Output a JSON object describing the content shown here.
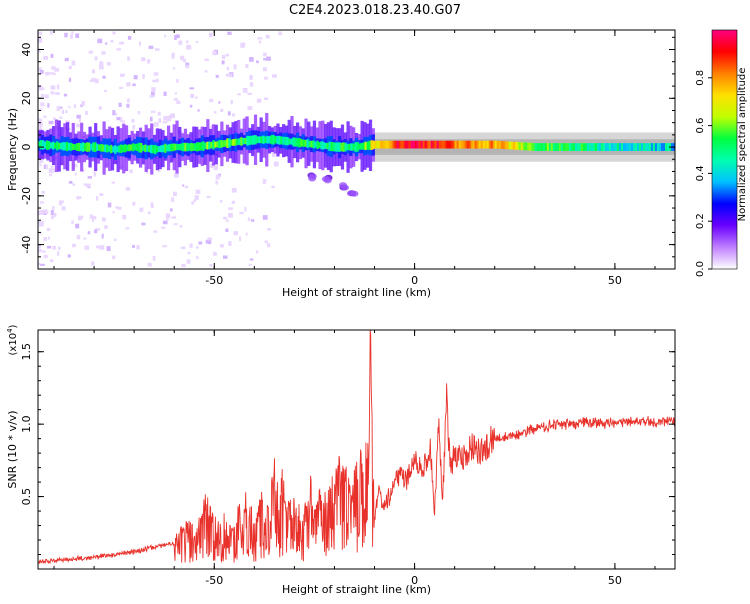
{
  "figure_title": "C2E4.2023.018.23.40.G07",
  "colors": {
    "line": "#e8312a",
    "axis": "#000000",
    "spec_low": "#a000ff",
    "spec_mid": "#00ff40",
    "spec_high": "#ff0000"
  },
  "chart_data": [
    {
      "type": "heatmap",
      "xlabel": "Height of straight line (km)",
      "ylabel": "Frequency (Hz)",
      "xlim": [
        -94,
        65
      ],
      "ylim": [
        -50,
        48
      ],
      "xticks": [
        -50,
        0,
        50
      ],
      "yticks": [
        -40,
        -20,
        0,
        20,
        40
      ],
      "colorbar": {
        "label": "Normalized spectral amplitude",
        "range": [
          0,
          1
        ],
        "ticks": [
          "0.0",
          "0.2",
          "0.4",
          "0.6",
          "0.8"
        ],
        "tick_values": [
          0,
          0.2,
          0.4,
          0.6,
          0.8
        ],
        "colormap": [
          "#ffffff",
          "#c080ff",
          "#6a00ff",
          "#0000ff",
          "#00c0ff",
          "#00ffb0",
          "#00ff40",
          "#c0ff00",
          "#ffe000",
          "#ff8000",
          "#ff0000",
          "#ff0080"
        ]
      },
      "ridge": {
        "x": [
          -94,
          -85,
          -80,
          -75,
          -70,
          -65,
          -60,
          -55,
          -50,
          -45,
          -40,
          -35,
          -30,
          -25,
          -20,
          -15,
          -10,
          -5,
          0,
          5,
          10,
          20,
          30,
          40,
          50,
          65
        ],
        "freq": [
          1,
          0,
          0,
          -1,
          0,
          -1,
          0,
          0,
          1,
          2,
          3,
          3,
          2,
          1,
          0,
          0,
          1,
          1,
          1,
          1,
          1,
          1,
          0,
          0,
          0,
          0
        ],
        "intensity": [
          0.45,
          0.5,
          0.5,
          0.5,
          0.5,
          0.5,
          0.5,
          0.55,
          0.55,
          0.55,
          0.5,
          0.5,
          0.5,
          0.5,
          0.5,
          0.5,
          0.7,
          0.9,
          0.95,
          0.9,
          0.8,
          0.8,
          0.55,
          0.5,
          0.45,
          0.4
        ]
      },
      "secondary_branch": {
        "x": [
          -26,
          -22,
          -18,
          -15
        ],
        "freq": [
          -12,
          -13,
          -16,
          -19
        ]
      }
    },
    {
      "type": "line",
      "xlabel": "Height of straight line (km)",
      "ylabel": "SNR (10 * v/v)",
      "y_multiplier": "(x10",
      "y_multiplier_exp": "4",
      "y_multiplier_close": ")",
      "xlim": [
        -94,
        65
      ],
      "ylim": [
        0,
        1.65
      ],
      "xticks": [
        -50,
        0,
        50
      ],
      "yticks": [
        "0.5",
        "1.0",
        "1.5"
      ],
      "ytick_values": [
        0.5,
        1.0,
        1.5
      ],
      "series": [
        {
          "x": [
            -94,
            -90,
            -85,
            -80,
            -75,
            -70,
            -65,
            -60,
            -57,
            -55,
            -52,
            -50,
            -48,
            -45,
            -43,
            -40,
            -38,
            -36,
            -35,
            -34,
            -33,
            -32,
            -30,
            -28,
            -26,
            -25,
            -24,
            -22,
            -20,
            -18,
            -16,
            -15,
            -14,
            -13,
            -12,
            -11.5,
            -11,
            -10.5,
            -10,
            -9,
            -8,
            -6,
            -4,
            -2,
            0,
            2,
            4,
            5,
            6,
            7,
            8,
            9,
            10,
            12,
            14,
            16,
            18,
            20,
            22,
            25,
            28,
            30,
            32,
            35,
            40,
            45,
            50,
            55,
            60,
            65
          ],
          "y": [
            0.05,
            0.06,
            0.07,
            0.08,
            0.1,
            0.12,
            0.15,
            0.18,
            0.3,
            0.25,
            0.45,
            0.3,
            0.35,
            0.25,
            0.5,
            0.3,
            0.45,
            0.35,
            0.85,
            0.4,
            0.6,
            0.35,
            0.45,
            0.3,
            0.55,
            0.35,
            0.5,
            0.45,
            0.55,
            0.7,
            0.5,
            0.65,
            0.6,
            0.75,
            1.05,
            0.6,
            1.65,
            0.8,
            0.35,
            0.55,
            0.45,
            0.5,
            0.65,
            0.6,
            0.75,
            0.7,
            0.8,
            0.4,
            1.0,
            0.5,
            1.15,
            0.7,
            0.8,
            0.75,
            0.85,
            0.8,
            0.85,
            0.9,
            0.9,
            0.92,
            0.95,
            0.97,
            0.98,
            1.0,
            1.0,
            1.01,
            1.01,
            1.02,
            1.02,
            1.02
          ]
        }
      ]
    }
  ]
}
